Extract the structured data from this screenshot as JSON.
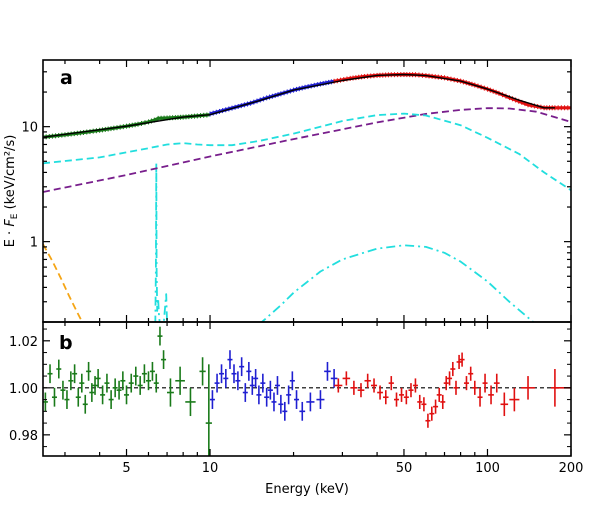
{
  "chart_data": [
    {
      "panel_label": "a",
      "type": "line",
      "xscale": "log",
      "yscale": "log",
      "xlim": [
        2.5,
        200
      ],
      "ylim": [
        0.2,
        38
      ],
      "ylabel": "E · F_E (keV/cm²/s)",
      "ylabel_parts": {
        "pre": "E · ",
        "italic": "F",
        "sub": "E",
        "post": " (keV/cm²/s)"
      },
      "y_ticks": [
        1,
        10
      ],
      "y_tick_labels": [
        "1",
        "10"
      ],
      "series": [
        {
          "style": "data-green",
          "color": "#1a7a1a",
          "x": [
            2.5,
            3,
            3.5,
            4,
            4.5,
            5,
            5.5,
            6,
            6.3,
            6.5,
            7,
            7.5,
            8,
            9,
            10
          ],
          "y": [
            8.1,
            8.5,
            8.9,
            9.3,
            9.7,
            10.1,
            10.5,
            11,
            11.4,
            11.8,
            11.9,
            12.0,
            12.1,
            12.4,
            12.7
          ]
        },
        {
          "style": "data-blue",
          "color": "#1f1fd1",
          "x": [
            10,
            12,
            14,
            16,
            18,
            20,
            22,
            25,
            28
          ],
          "y": [
            12.9,
            14.5,
            16.0,
            17.8,
            19.3,
            20.8,
            22.0,
            23.5,
            24.8
          ]
        },
        {
          "style": "data-red",
          "color": "#e01010",
          "x": [
            28,
            32,
            36,
            40,
            45,
            50,
            55,
            60,
            70,
            80,
            90,
            100,
            110,
            120,
            140,
            160,
            175,
            200
          ],
          "y": [
            24.8,
            26.3,
            27.3,
            27.9,
            28.3,
            28.4,
            28.3,
            27.8,
            26.6,
            24.9,
            23.0,
            21.2,
            19.5,
            17.9,
            15.5,
            14.6,
            14.6,
            14.6
          ]
        },
        {
          "style": "model-black",
          "color": "#000000",
          "x": [
            2.5,
            5,
            8,
            10,
            15,
            20,
            30,
            40,
            50,
            60,
            80,
            100,
            130,
            160,
            175
          ],
          "y": [
            8.1,
            10.1,
            12.1,
            12.7,
            16.8,
            20.8,
            25.2,
            27.9,
            28.4,
            27.8,
            24.9,
            21.2,
            17.0,
            14.6,
            14.6
          ]
        },
        {
          "style": "dash-cyan",
          "color": "#22dede",
          "x": [
            2.5,
            4,
            6,
            7,
            8,
            9,
            10,
            12,
            15,
            20,
            30,
            40,
            50,
            60,
            80,
            100,
            130,
            160,
            200
          ],
          "y": [
            4.8,
            5.4,
            6.5,
            7.0,
            7.2,
            7.0,
            6.9,
            6.9,
            7.5,
            8.7,
            11.2,
            12.6,
            13.0,
            12.5,
            10.3,
            8.0,
            5.8,
            4.0,
            2.8
          ]
        },
        {
          "style": "dash-purple",
          "color": "#781e8c",
          "x": [
            2.5,
            5,
            10,
            20,
            40,
            60,
            80,
            100,
            120,
            150,
            200
          ],
          "y": [
            2.7,
            3.8,
            5.5,
            7.8,
            10.9,
            12.9,
            14.0,
            14.5,
            14.4,
            13.5,
            11.0
          ]
        },
        {
          "style": "dash-orange",
          "color": "#f5a515",
          "x": [
            2.5,
            2.7,
            2.9,
            3.1,
            3.3,
            3.5
          ],
          "y": [
            0.95,
            0.68,
            0.48,
            0.34,
            0.25,
            0.19
          ]
        },
        {
          "style": "dashdot-cyan-broad",
          "color": "#22dede",
          "x": [
            15,
            18,
            20,
            25,
            30,
            40,
            50,
            60,
            70,
            80,
            100,
            120,
            150
          ],
          "y": [
            0.19,
            0.28,
            0.36,
            0.55,
            0.7,
            0.87,
            0.93,
            0.9,
            0.8,
            0.67,
            0.45,
            0.3,
            0.19
          ]
        },
        {
          "style": "dashdot-cyan-line",
          "color": "#22dede",
          "x": [
            6.35,
            6.38,
            6.4,
            6.42,
            6.45,
            6.5,
            6.55,
            6.6,
            6.8,
            6.95,
            7.0,
            7.05
          ],
          "y": [
            0.19,
            0.6,
            4.8,
            0.6,
            0.25,
            0.32,
            0.22,
            0.19,
            0.19,
            0.35,
            0.19,
            0.19
          ]
        }
      ]
    },
    {
      "panel_label": "b",
      "type": "scatter",
      "xscale": "log",
      "xlim": [
        2.5,
        200
      ],
      "ylim": [
        0.971,
        1.028
      ],
      "xlabel": "Energy (keV)",
      "x_ticks": [
        5,
        10,
        50,
        100,
        200
      ],
      "x_tick_labels": [
        "5",
        "10",
        "50",
        "100",
        "200"
      ],
      "y_ticks": [
        0.98,
        1.0,
        1.02
      ],
      "y_tick_labels": [
        "0.98",
        "1.00",
        "1.02"
      ],
      "reference_line": 1.0,
      "series": [
        {
          "color": "#1a7a1a",
          "x": [
            2.55,
            2.65,
            2.75,
            2.85,
            2.95,
            3.05,
            3.15,
            3.25,
            3.35,
            3.45,
            3.55,
            3.65,
            3.75,
            3.85,
            3.95,
            4.1,
            4.25,
            4.4,
            4.55,
            4.7,
            4.85,
            5.0,
            5.2,
            5.4,
            5.6,
            5.8,
            6.0,
            6.2,
            6.4,
            6.6,
            6.8,
            7.2,
            7.8,
            8.5,
            9.4,
            9.9
          ],
          "y": [
            0.994,
            1.006,
            0.996,
            1.008,
            0.999,
            0.995,
            1.003,
            1.006,
            0.996,
            1.002,
            0.993,
            1.007,
            0.998,
            1.001,
            1.004,
            0.997,
            1.002,
            0.995,
            1.0,
            0.999,
            1.003,
            0.997,
            1.002,
            1.005,
            1.001,
            1.006,
            1.003,
            1.007,
            1.002,
            1.022,
            1.012,
            0.998,
            1.003,
            0.994,
            1.007,
            0.985
          ],
          "yerr": [
            0.004,
            0.004,
            0.004,
            0.004,
            0.004,
            0.004,
            0.004,
            0.004,
            0.004,
            0.004,
            0.004,
            0.004,
            0.004,
            0.004,
            0.004,
            0.004,
            0.004,
            0.004,
            0.004,
            0.004,
            0.004,
            0.004,
            0.004,
            0.004,
            0.004,
            0.004,
            0.004,
            0.004,
            0.004,
            0.004,
            0.004,
            0.006,
            0.006,
            0.006,
            0.006,
            0.025
          ]
        },
        {
          "color": "#1f1fd1",
          "x": [
            10.2,
            10.6,
            11.0,
            11.4,
            11.8,
            12.2,
            12.6,
            13.0,
            13.4,
            13.8,
            14.2,
            14.6,
            15.0,
            15.5,
            16.0,
            16.5,
            17.0,
            17.5,
            18.0,
            18.6,
            19.2,
            19.8,
            20.5,
            21.5,
            23,
            25
          ],
          "y": [
            0.995,
            1.002,
            1.006,
            1.004,
            1.012,
            1.006,
            1.003,
            1.009,
            0.998,
            1.007,
            1.001,
            1.004,
            0.997,
            1.002,
            0.996,
            0.999,
            0.994,
            1.001,
            0.993,
            0.99,
            0.997,
            1.003,
            0.995,
            0.99,
            0.994,
            0.995
          ],
          "yerr": [
            0.004,
            0.004,
            0.004,
            0.004,
            0.004,
            0.004,
            0.004,
            0.004,
            0.004,
            0.004,
            0.004,
            0.004,
            0.004,
            0.004,
            0.004,
            0.004,
            0.004,
            0.004,
            0.004,
            0.004,
            0.004,
            0.004,
            0.004,
            0.004,
            0.004,
            0.004
          ]
        },
        {
          "color": "#1f1fd1",
          "x": [
            26.5,
            28.0
          ],
          "y": [
            1.007,
            1.004
          ],
          "yerr": [
            0.004,
            0.004
          ]
        },
        {
          "color": "#e01010",
          "x": [
            29,
            31,
            33,
            35,
            37,
            39,
            41,
            43,
            45,
            47,
            49,
            51,
            53,
            55,
            57,
            59,
            61,
            63,
            65,
            67,
            69,
            71,
            73,
            75,
            77,
            79,
            81,
            84,
            87,
            90,
            94,
            98,
            103,
            108,
            115,
            125,
            140,
            175
          ],
          "y": [
            1.001,
            1.004,
            1.0,
            0.999,
            1.003,
            1.001,
            0.998,
            0.996,
            1.002,
            0.995,
            0.997,
            0.996,
            0.999,
            1.001,
            0.994,
            0.993,
            0.986,
            0.989,
            0.992,
            0.997,
            0.994,
            1.002,
            1.004,
            1.008,
            1.0,
            1.011,
            1.012,
            1.002,
            1.006,
            1.0,
            0.996,
            1.002,
            0.997,
            1.002,
            0.993,
            0.995,
            1.0,
            1.0
          ],
          "yerr": [
            0.003,
            0.003,
            0.003,
            0.003,
            0.003,
            0.003,
            0.003,
            0.003,
            0.003,
            0.003,
            0.003,
            0.003,
            0.003,
            0.003,
            0.003,
            0.003,
            0.003,
            0.003,
            0.003,
            0.003,
            0.003,
            0.003,
            0.003,
            0.003,
            0.003,
            0.003,
            0.003,
            0.003,
            0.003,
            0.003,
            0.004,
            0.004,
            0.004,
            0.004,
            0.005,
            0.005,
            0.005,
            0.008
          ]
        }
      ]
    }
  ]
}
